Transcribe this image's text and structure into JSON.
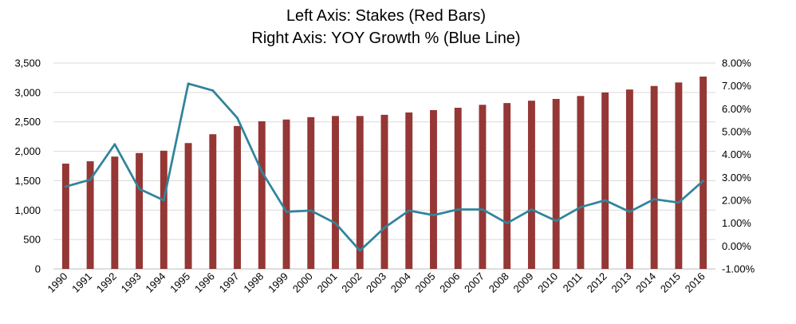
{
  "chart_data": {
    "type": "bar",
    "title": "Left Axis: Stakes (Red Bars)",
    "subtitle": "Right Axis: YOY Growth % (Blue Line)",
    "categories": [
      "1990",
      "1991",
      "1992",
      "1993",
      "1994",
      "1995",
      "1996",
      "1997",
      "1998",
      "1999",
      "2000",
      "2001",
      "2002",
      "2003",
      "2004",
      "2005",
      "2006",
      "2007",
      "2008",
      "2009",
      "2010",
      "2011",
      "2012",
      "2013",
      "2014",
      "2015",
      "2016"
    ],
    "series": [
      {
        "type": "bar",
        "axis": "left",
        "color": "#953735",
        "values": [
          1790,
          1830,
          1910,
          1970,
          2010,
          2140,
          2290,
          2430,
          2510,
          2540,
          2580,
          2600,
          2600,
          2620,
          2660,
          2700,
          2740,
          2790,
          2820,
          2860,
          2890,
          2940,
          3000,
          3050,
          3110,
          3170,
          3270
        ]
      },
      {
        "type": "line",
        "axis": "right",
        "color": "#31849B",
        "values": [
          2.6,
          2.9,
          4.45,
          2.5,
          2.0,
          7.1,
          6.8,
          5.6,
          3.25,
          1.5,
          1.55,
          1.0,
          -0.2,
          0.8,
          1.55,
          1.35,
          1.6,
          1.6,
          1.0,
          1.6,
          1.1,
          1.7,
          2.0,
          1.5,
          2.05,
          1.9,
          2.85
        ]
      }
    ],
    "y_left": {
      "range": [
        0,
        3500
      ],
      "ticks": [
        0,
        500,
        1000,
        1500,
        2000,
        2500,
        3000,
        3500
      ],
      "tick_labels": [
        "0",
        "500",
        "1,000",
        "1,500",
        "2,000",
        "2,500",
        "3,000",
        "3,500"
      ]
    },
    "y_right": {
      "range": [
        -1,
        8
      ],
      "ticks": [
        -1,
        0,
        1,
        2,
        3,
        4,
        5,
        6,
        7,
        8
      ],
      "tick_labels": [
        "-1.00%",
        "0.00%",
        "1.00%",
        "2.00%",
        "3.00%",
        "4.00%",
        "5.00%",
        "6.00%",
        "7.00%",
        "8.00%"
      ]
    },
    "grid": true,
    "legend": "none"
  }
}
